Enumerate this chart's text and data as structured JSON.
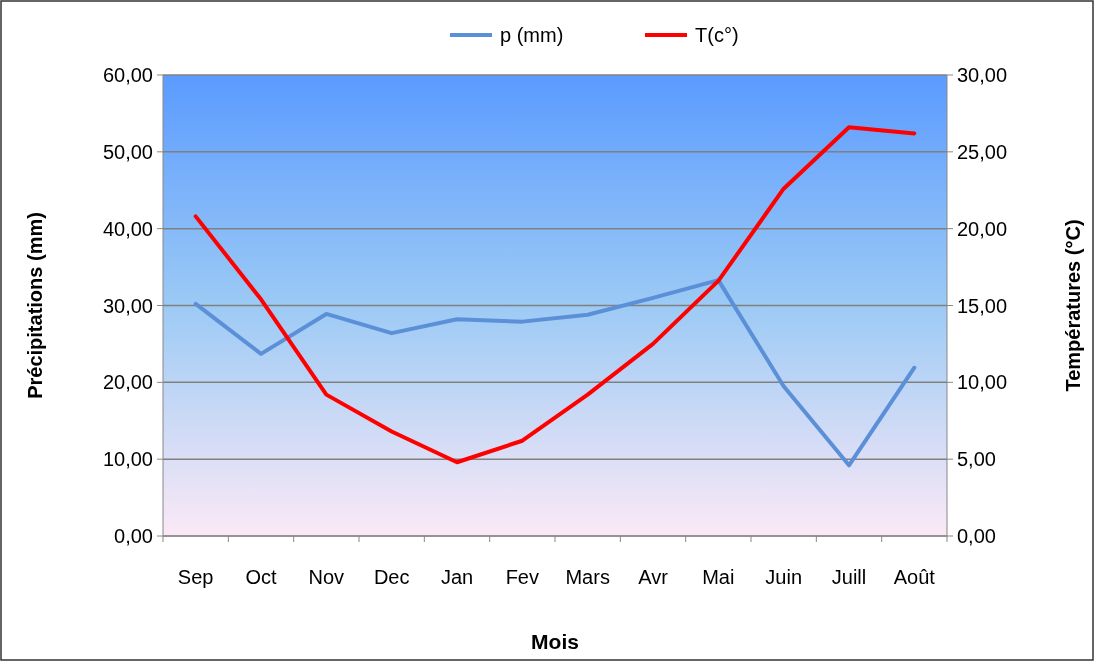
{
  "chart_data": {
    "type": "line",
    "xlabel": "Mois",
    "ylabel": "Précipitations (mm)",
    "y2label": "Températures (°C)",
    "categories": [
      "Sep",
      "Oct",
      "Nov",
      "Dec",
      "Jan",
      "Fev",
      "Mars",
      "Avr",
      "Mai",
      "Juin",
      "Juill",
      "Août"
    ],
    "series": [
      {
        "name": "p (mm)",
        "color": "#5b8fd8",
        "values": [
          30.2,
          23.7,
          28.9,
          26.4,
          28.2,
          27.9,
          28.8,
          31.0,
          33.3,
          19.5,
          9.2,
          21.9
        ]
      },
      {
        "name": "T(c°)",
        "color": "#ff0000",
        "axis": "y2",
        "values": [
          20.8,
          15.4,
          9.2,
          6.8,
          4.8,
          6.2,
          9.2,
          12.5,
          16.6,
          22.6,
          26.6,
          26.2
        ]
      }
    ],
    "ylim": [
      0,
      60
    ],
    "yticks": [
      {
        "value": 0,
        "label": "0,00"
      },
      {
        "value": 10,
        "label": "10,00"
      },
      {
        "value": 20,
        "label": "20,00"
      },
      {
        "value": 30,
        "label": "30,00"
      },
      {
        "value": 40,
        "label": "40,00"
      },
      {
        "value": 50,
        "label": "50,00"
      },
      {
        "value": 60,
        "label": "60,00"
      }
    ],
    "y2lim": [
      0,
      30
    ],
    "y2ticks": [
      {
        "value": 0,
        "label": "0,00"
      },
      {
        "value": 5,
        "label": "5,00"
      },
      {
        "value": 10,
        "label": "10,00"
      },
      {
        "value": 15,
        "label": "15,00"
      },
      {
        "value": 20,
        "label": "20,00"
      },
      {
        "value": 25,
        "label": "25,00"
      },
      {
        "value": 30,
        "label": "30,00"
      }
    ],
    "grid": "y",
    "legend": "top",
    "marker": "none",
    "line_style": "solid"
  }
}
